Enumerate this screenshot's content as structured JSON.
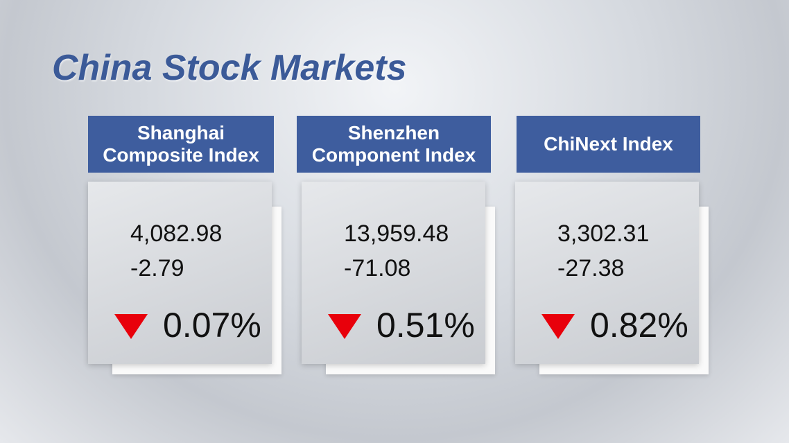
{
  "title": "China Stock Markets",
  "indices": [
    {
      "name": [
        "Shanghai",
        "Composite Index"
      ],
      "value": "4,082.98",
      "change": "-2.79",
      "percent": "0.07%"
    },
    {
      "name": [
        "Shenzhen",
        "Component Index"
      ],
      "value": "13,959.48",
      "change": "-71.08",
      "percent": "0.51%"
    },
    {
      "name": [
        "ChiNext Index"
      ],
      "value": "3,302.31",
      "change": "-27.38",
      "percent": "0.82%"
    }
  ]
}
